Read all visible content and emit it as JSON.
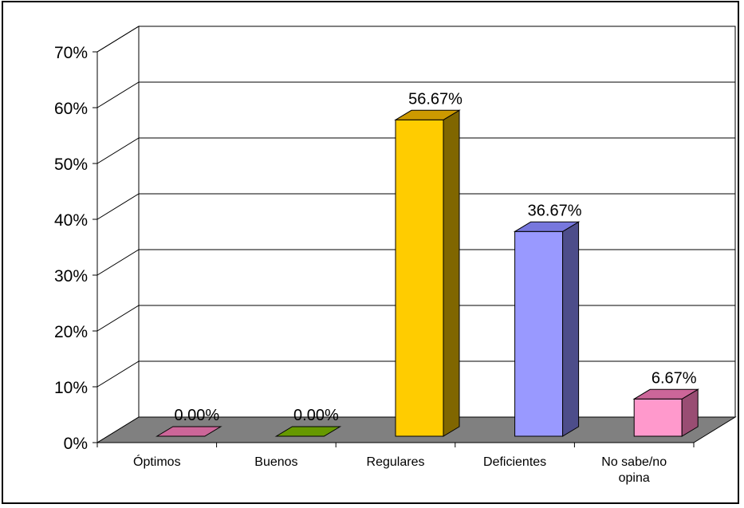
{
  "chart_data": {
    "type": "bar",
    "categories": [
      "Óptimos",
      "Buenos",
      "Regulares",
      "Deficientes",
      "No sabe/no opina"
    ],
    "category_lines": [
      [
        "Óptimos"
      ],
      [
        "Buenos"
      ],
      [
        "Regulares"
      ],
      [
        "Deficientes"
      ],
      [
        "No sabe/no",
        "opina"
      ]
    ],
    "values": [
      0.0,
      0.0,
      56.67,
      36.67,
      6.67
    ],
    "data_labels": [
      "0.00%",
      "0.00%",
      "56.67%",
      "36.67%",
      "6.67%"
    ],
    "colors": [
      "#cc6699",
      "#669900",
      "#ffcc00",
      "#9999ff",
      "#ff99cc"
    ],
    "side_colors": [
      "#8a3d66",
      "#3d5c00",
      "#806600",
      "#4d4d8a",
      "#994d73"
    ],
    "top_colors": [
      "#cc6699",
      "#669900",
      "#cc9900",
      "#7777dd",
      "#cc6699"
    ],
    "ylim": [
      0,
      70
    ],
    "y_ticks": [
      "0%",
      "10%",
      "20%",
      "30%",
      "40%",
      "50%",
      "60%",
      "70%"
    ],
    "floor_color": "#808080",
    "grid": true,
    "style": "3d-column"
  }
}
